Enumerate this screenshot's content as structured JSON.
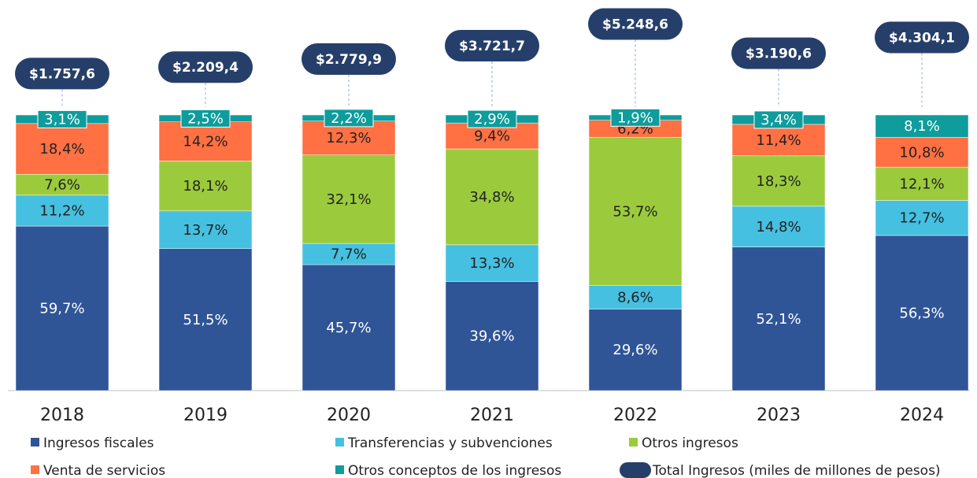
{
  "chart_data": {
    "type": "stacked_bar",
    "categories": [
      "2018",
      "2019",
      "2020",
      "2021",
      "2022",
      "2023",
      "2024"
    ],
    "ylim": [
      0,
      100
    ],
    "series": [
      {
        "name": "Ingresos fiscales",
        "color": "#2f5597",
        "values": [
          59.7,
          51.5,
          45.7,
          39.6,
          29.6,
          52.1,
          56.3
        ],
        "value_labels": [
          "59,7%",
          "51,5%",
          "45,7%",
          "39,6%",
          "29,6%",
          "52,1%",
          "56,3%"
        ]
      },
      {
        "name": "Transferencias y subvenciones",
        "color": "#45c0e0",
        "values": [
          11.2,
          13.7,
          7.7,
          13.3,
          8.6,
          14.8,
          12.7
        ],
        "value_labels": [
          "11,2%",
          "13,7%",
          "7,7%",
          "13,3%",
          "8,6%",
          "14,8%",
          "12,7%"
        ]
      },
      {
        "name": "Otros ingresos",
        "color": "#9bcb3c",
        "values": [
          7.6,
          18.1,
          32.1,
          34.8,
          53.7,
          18.3,
          12.1
        ],
        "value_labels": [
          "7,6%",
          "18,1%",
          "32,1%",
          "34,8%",
          "53,7%",
          "18,3%",
          "12,1%"
        ]
      },
      {
        "name": "Venta de servicios",
        "color": "#ff7043",
        "values": [
          18.4,
          14.2,
          12.3,
          9.4,
          6.2,
          11.4,
          10.8
        ],
        "value_labels": [
          "18,4%",
          "14,2%",
          "12,3%",
          "9,4%",
          "6,2%",
          "11,4%",
          "10,8%"
        ]
      },
      {
        "name": "Otros conceptos de los ingresos",
        "color": "#0e9c9c",
        "values": [
          3.1,
          2.5,
          2.2,
          2.9,
          1.9,
          3.4,
          8.1
        ],
        "value_labels": [
          "3,1%",
          "2,5%",
          "2,2%",
          "2,9%",
          "1,9%",
          "3,4%",
          "8,1%"
        ]
      }
    ],
    "totals": {
      "name": "Total Ingresos (miles de millones de pesos)",
      "color": "#263f6a",
      "values": [
        1757.6,
        2209.4,
        2779.9,
        3721.7,
        5248.6,
        3190.6,
        4304.1
      ],
      "value_labels": [
        "$1.757,6",
        "$2.209,4",
        "$2.779,9",
        "$3.721,7",
        "$5.248,6",
        "$3.190,6",
        "$4.304,1"
      ]
    }
  }
}
